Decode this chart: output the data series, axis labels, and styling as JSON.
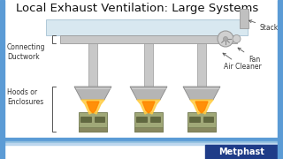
{
  "title": "Local Exhaust Ventilation: Large Systems",
  "title_fontsize": 9.5,
  "title_color": "#111111",
  "bg_color": "#ffffff",
  "border_left_color": "#5b9bd5",
  "border_right_color": "#5b9bd5",
  "metphast_bg": "#1f3c88",
  "metphast_text": "Metphast",
  "metphast_color": "#ffffff",
  "labels": {
    "stack": "Stack",
    "fan": "Fan",
    "air_cleaner": "Air Cleaner",
    "connecting_ductwork": "Connecting\nDuctwork",
    "hoods_enclosures": "Hoods or\nEnclosures"
  },
  "duct_color": "#c8c8c8",
  "duct_edge": "#999999",
  "hood_color": "#b5b5b5",
  "hood_edge": "#888888",
  "box_color": "#a0a878",
  "box_edge": "#707850",
  "box_detail_color": "#606840",
  "flame_color1": "#ffcc44",
  "flame_color2": "#ff8800",
  "ceiling_color": "#d8e8f0",
  "ceiling_edge": "#b0c8d8",
  "fan_color": "#d0d0d0",
  "fan_edge": "#999999",
  "stack_color": "#c0c0c0",
  "stack_edge": "#999999",
  "label_fontsize": 5.5,
  "label_color": "#333333",
  "bottom_line1": "#5b9bd5",
  "bottom_line2": "#92c0e0",
  "bottom_line3": "#bdd7ee"
}
